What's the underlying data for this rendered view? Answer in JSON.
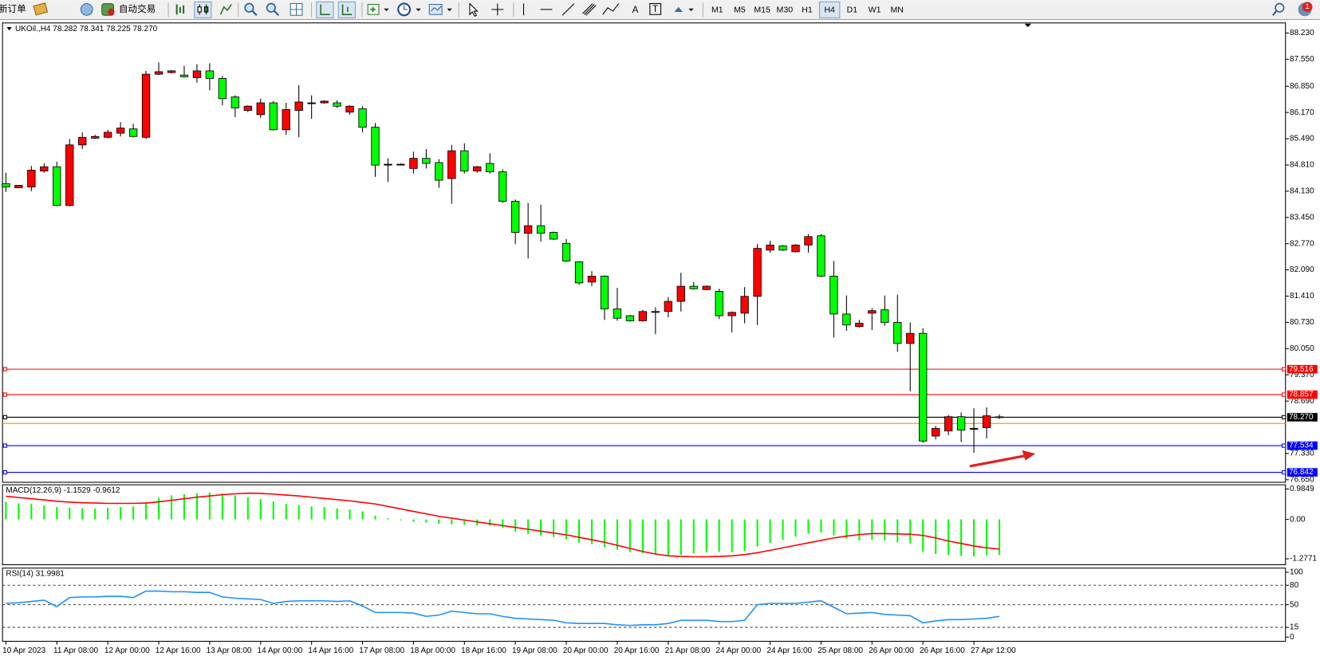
{
  "toolbar": {
    "new_order": "新订单",
    "auto_trading": "自动交易",
    "timeframes": [
      "M1",
      "M5",
      "M15",
      "M30",
      "H1",
      "H4",
      "D1",
      "W1",
      "MN"
    ],
    "active_timeframe": "H4",
    "notifications": "1"
  },
  "chart_data": [
    {
      "type": "candlestick",
      "title": "UKOil.,H4  78.282 78.341 78.225 78.270",
      "categories": [
        "10 Apr 2023",
        null,
        null,
        null,
        "11 Apr 08:00",
        null,
        null,
        null,
        "12 Apr 00:00",
        null,
        null,
        null,
        "12 Apr 16:00",
        null,
        null,
        null,
        "13 Apr 08:00",
        null,
        null,
        null,
        "14 Apr 00:00",
        null,
        null,
        null,
        "14 Apr 16:00",
        null,
        null,
        null,
        "17 Apr 08:00",
        null,
        null,
        null,
        "18 Apr 00:00",
        null,
        null,
        null,
        "18 Apr 16:00",
        null,
        null,
        null,
        "19 Apr 08:00",
        null,
        null,
        null,
        "20 Apr 00:00",
        null,
        null,
        null,
        "20 Apr 16:00",
        null,
        null,
        null,
        "21 Apr 08:00",
        null,
        null,
        null,
        "24 Apr 00:00",
        null,
        null,
        null,
        "24 Apr 16:00",
        null,
        null,
        null,
        "25 Apr 08:00",
        null,
        null,
        null,
        "26 Apr 00:00",
        null,
        null,
        null,
        "26 Apr 16:00",
        null,
        null,
        null,
        "27 Apr 12:00",
        null,
        null
      ],
      "open": [
        84.326,
        84.217,
        84.239,
        84.653,
        84.763,
        83.759,
        85.33,
        85.504,
        85.526,
        85.635,
        85.744,
        85.526,
        87.162,
        87.205,
        87.14,
        87.074,
        87.249,
        87.053,
        86.573,
        86.224,
        86.115,
        86.42,
        85.722,
        86.224,
        86.42,
        86.42,
        86.42,
        86.18,
        86.268,
        85.788,
        84.828,
        84.828,
        84.719,
        84.981,
        84.872,
        84.457,
        85.177,
        84.653,
        84.85,
        84.632,
        83.868,
        83.04,
        83.236,
        83.062,
        82.778,
        82.298,
        81.775,
        81.927,
        81.077,
        80.902,
        80.771,
        81.011,
        81.011,
        81.273,
        81.666,
        81.578,
        81.535,
        80.902,
        80.968,
        81.404,
        82.603,
        82.712,
        82.56,
        82.734,
        82.974,
        81.927,
        80.946,
        80.619,
        80.968,
        81.055,
        80.728,
        80.183,
        80.445,
        77.783,
        77.914,
        78.285,
        77.98,
        78.001,
        78.282
      ],
      "high": [
        84.61,
        84.283,
        84.785,
        84.85,
        84.894,
        85.482,
        85.657,
        85.591,
        85.722,
        85.918,
        85.875,
        87.249,
        87.467,
        87.27,
        87.38,
        87.423,
        87.445,
        87.118,
        86.617,
        86.355,
        86.529,
        86.464,
        86.42,
        86.878,
        86.617,
        86.486,
        86.486,
        86.355,
        86.333,
        85.897,
        84.981,
        84.85,
        85.155,
        85.221,
        84.959,
        85.33,
        85.373,
        84.785,
        85.112,
        84.697,
        83.912,
        83.825,
        83.781,
        83.084,
        82.887,
        82.32,
        82.058,
        81.949,
        81.622,
        80.924,
        81.055,
        81.12,
        81.382,
        82.015,
        81.775,
        81.688,
        81.6,
        81.011,
        81.644,
        82.756,
        82.843,
        82.734,
        82.756,
        83.018,
        83.018,
        82.32,
        81.426,
        80.793,
        81.098,
        81.426,
        81.448,
        80.728,
        80.575,
        78.045,
        78.329,
        78.394,
        78.503,
        78.525,
        78.341
      ],
      "low": [
        84.108,
        84.217,
        84.13,
        84.61,
        83.738,
        83.738,
        85.221,
        85.482,
        85.504,
        85.548,
        85.526,
        85.482,
        87.14,
        87.183,
        87.074,
        86.944,
        86.747,
        86.355,
        86.049,
        86.18,
        86.027,
        85.7,
        85.591,
        85.526,
        86.006,
        86.398,
        86.289,
        86.115,
        85.657,
        84.501,
        84.37,
        84.806,
        84.588,
        84.719,
        84.217,
        83.803,
        84.588,
        84.61,
        84.588,
        83.825,
        82.756,
        82.386,
        82.822,
        82.865,
        82.298,
        81.709,
        81.666,
        80.793,
        80.771,
        80.75,
        80.75,
        80.423,
        80.859,
        81.011,
        81.578,
        81.556,
        80.815,
        80.466,
        80.706,
        80.662,
        82.538,
        82.581,
        82.538,
        82.538,
        81.905,
        80.335,
        80.51,
        80.597,
        80.531,
        80.641,
        79.965,
        78.94,
        77.609,
        77.697,
        77.805,
        77.631,
        77.347,
        77.718,
        78.225
      ],
      "close": [
        84.239,
        84.283,
        84.675,
        84.763,
        83.759,
        85.33,
        85.526,
        85.548,
        85.657,
        85.766,
        85.548,
        87.162,
        87.227,
        87.249,
        87.096,
        87.249,
        87.053,
        86.529,
        86.289,
        86.333,
        86.42,
        85.722,
        86.246,
        86.442,
        86.42,
        86.464,
        86.333,
        86.333,
        85.788,
        84.806,
        84.828,
        84.828,
        84.981,
        84.85,
        84.414,
        85.177,
        84.653,
        84.763,
        84.632,
        83.868,
        83.062,
        83.236,
        83.04,
        82.887,
        82.32,
        81.753,
        81.927,
        81.077,
        80.837,
        80.771,
        81.011,
        81.011,
        81.273,
        81.666,
        81.6,
        81.666,
        80.902,
        80.989,
        81.404,
        82.647,
        82.734,
        82.603,
        82.734,
        82.953,
        81.927,
        80.946,
        80.662,
        80.706,
        81.033,
        80.728,
        80.183,
        80.445,
        77.653,
        77.98,
        78.285,
        77.936,
        77.98,
        78.307,
        78.27
      ],
      "up_color": "#ff0000",
      "down_color": "#00ff00",
      "ylim": [
        76.584,
        88.492
      ],
      "yticks": [
        {
          "value": 88.23,
          "label": "88.230"
        },
        {
          "value": 87.55,
          "label": "87.550"
        },
        {
          "value": 86.85,
          "label": "86.850"
        },
        {
          "value": 86.17,
          "label": "86.170"
        },
        {
          "value": 85.49,
          "label": "85.490"
        },
        {
          "value": 84.81,
          "label": "84.810"
        },
        {
          "value": 84.13,
          "label": "84.130"
        },
        {
          "value": 83.45,
          "label": "83.450"
        },
        {
          "value": 82.77,
          "label": "82.770"
        },
        {
          "value": 82.09,
          "label": "82.090"
        },
        {
          "value": 81.41,
          "label": "81.410"
        },
        {
          "value": 80.73,
          "label": "80.730"
        },
        {
          "value": 80.05,
          "label": "80.050"
        },
        {
          "value": 79.37,
          "label": "79.370"
        },
        {
          "value": 78.69,
          "label": "78.690"
        },
        {
          "value": 77.33,
          "label": "77.330"
        },
        {
          "value": 76.65,
          "label": "76.650"
        }
      ],
      "levels": [
        {
          "value": 79.516,
          "label": "79.516",
          "color": "#ff0000"
        },
        {
          "value": 78.857,
          "label": "78.857",
          "color": "#ff0000"
        },
        {
          "value": 78.27,
          "label": "78.270",
          "color": "#000000"
        },
        {
          "value": 78.11,
          "color": "#ff8c00"
        },
        {
          "value": 77.534,
          "label": "77.534",
          "color": "#0000ff"
        },
        {
          "value": 76.842,
          "label": "76.842",
          "color": "#0000ff"
        }
      ]
    },
    {
      "type": "macd",
      "title": "MACD(12,26,9) -1.1529 -0.9612",
      "values": [
        0.57,
        0.52,
        0.5,
        0.45,
        0.4,
        0.38,
        0.36,
        0.35,
        0.38,
        0.4,
        0.42,
        0.55,
        0.7,
        0.78,
        0.82,
        0.84,
        0.87,
        0.84,
        0.78,
        0.72,
        0.66,
        0.58,
        0.5,
        0.46,
        0.42,
        0.4,
        0.36,
        0.32,
        0.26,
        0.12,
        0.04,
        -0.03,
        -0.08,
        -0.1,
        -0.14,
        -0.16,
        -0.17,
        -0.19,
        -0.21,
        -0.28,
        -0.4,
        -0.47,
        -0.52,
        -0.57,
        -0.65,
        -0.75,
        -0.8,
        -0.9,
        -0.98,
        -1.05,
        -1.1,
        -1.14,
        -1.18,
        -1.15,
        -1.1,
        -1.06,
        -1.05,
        -1.06,
        -1.02,
        -0.88,
        -0.76,
        -0.66,
        -0.56,
        -0.46,
        -0.42,
        -0.52,
        -0.62,
        -0.68,
        -0.66,
        -0.68,
        -0.74,
        -0.78,
        -1.05,
        -1.12,
        -1.16,
        -1.18,
        -1.2,
        -1.16,
        -1.1529
      ],
      "signal": [
        0.75,
        0.71,
        0.67,
        0.63,
        0.59,
        0.56,
        0.54,
        0.53,
        0.52,
        0.52,
        0.52,
        0.53,
        0.57,
        0.62,
        0.67,
        0.72,
        0.76,
        0.8,
        0.83,
        0.85,
        0.84,
        0.82,
        0.79,
        0.76,
        0.72,
        0.68,
        0.64,
        0.6,
        0.55,
        0.5,
        0.42,
        0.34,
        0.26,
        0.18,
        0.1,
        0.04,
        -0.02,
        -0.08,
        -0.14,
        -0.2,
        -0.26,
        -0.32,
        -0.38,
        -0.44,
        -0.5,
        -0.58,
        -0.66,
        -0.74,
        -0.84,
        -0.94,
        -1.04,
        -1.12,
        -1.18,
        -1.2,
        -1.21,
        -1.21,
        -1.2,
        -1.18,
        -1.14,
        -1.08,
        -1.0,
        -0.92,
        -0.84,
        -0.76,
        -0.68,
        -0.6,
        -0.54,
        -0.49,
        -0.46,
        -0.46,
        -0.47,
        -0.48,
        -0.52,
        -0.6,
        -0.7,
        -0.78,
        -0.86,
        -0.92,
        -0.9612
      ],
      "color": "#00ff00",
      "signal_color": "#ff0000",
      "ylim": [
        -1.468,
        1.121
      ],
      "yticks": [
        {
          "value": 0.9849,
          "label": "0.9849"
        },
        {
          "value": 0,
          "label": "0.00"
        },
        {
          "value": -1.2771,
          "label": "-1.2771"
        }
      ]
    },
    {
      "type": "line",
      "title": "RSI(14) 31.9981",
      "values": [
        52,
        53,
        55,
        57,
        47,
        61,
        62,
        62,
        63,
        63,
        61,
        71,
        71,
        70,
        70,
        69,
        69,
        62,
        60,
        59,
        58,
        52,
        55,
        56,
        56,
        56,
        55,
        56,
        48,
        38,
        38,
        38,
        37,
        32,
        34,
        40,
        38,
        36,
        36,
        32,
        29,
        28,
        27,
        26,
        22,
        21,
        21,
        21,
        19,
        18,
        19,
        19,
        21,
        26,
        26,
        26,
        24,
        24,
        26,
        50,
        52,
        52,
        52,
        54,
        56,
        46,
        36,
        37,
        38,
        35,
        34,
        33,
        22,
        25,
        27,
        27,
        28,
        29,
        31.9981
      ],
      "color": "#1e90ff",
      "ylim": [
        -6.5,
        106.5
      ],
      "yticks": [
        100,
        80,
        50,
        15,
        0
      ],
      "dashed_levels": [
        80,
        50,
        15
      ]
    }
  ]
}
